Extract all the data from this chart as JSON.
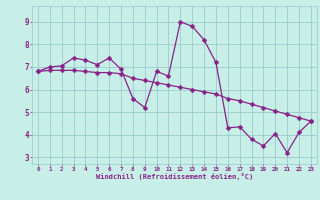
{
  "xlabel": "Windchill (Refroidissement éolien,°C)",
  "bg_color": "#c8eee8",
  "grid_color": "#99cccc",
  "line_color": "#882288",
  "xlim": [
    -0.5,
    23.5
  ],
  "ylim": [
    2.7,
    9.7
  ],
  "yticks": [
    3,
    4,
    5,
    6,
    7,
    8,
    9
  ],
  "xticks": [
    0,
    1,
    2,
    3,
    4,
    5,
    6,
    7,
    8,
    9,
    10,
    11,
    12,
    13,
    14,
    15,
    16,
    17,
    18,
    19,
    20,
    21,
    22,
    23
  ],
  "series1_x": [
    0,
    1,
    2,
    3,
    4,
    5,
    6,
    7,
    8,
    9,
    10,
    11,
    12,
    13,
    14,
    15,
    16,
    17,
    18,
    19,
    20,
    21,
    22,
    23
  ],
  "series1_y": [
    6.8,
    7.0,
    7.05,
    7.4,
    7.3,
    7.1,
    7.4,
    6.9,
    5.6,
    5.2,
    6.8,
    6.6,
    9.0,
    8.8,
    8.2,
    7.2,
    4.3,
    4.35,
    3.8,
    3.5,
    4.05,
    3.2,
    4.1,
    4.6
  ],
  "series2_x": [
    0,
    1,
    2,
    3,
    4,
    5,
    6,
    7,
    8,
    9,
    10,
    11,
    12,
    13,
    14,
    15,
    16,
    17,
    18,
    19,
    20,
    21,
    22,
    23
  ],
  "series2_y": [
    6.8,
    6.85,
    6.85,
    6.85,
    6.8,
    6.75,
    6.75,
    6.7,
    6.5,
    6.4,
    6.3,
    6.2,
    6.1,
    6.0,
    5.9,
    5.8,
    5.6,
    5.5,
    5.35,
    5.2,
    5.05,
    4.9,
    4.75,
    4.6
  ],
  "markersize": 2.5,
  "linewidth": 0.9
}
